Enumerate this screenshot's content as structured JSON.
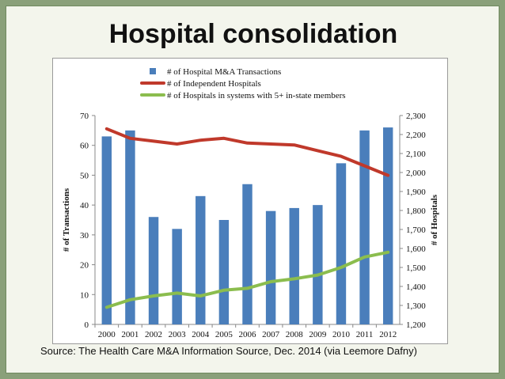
{
  "slide": {
    "title": "Hospital consolidation",
    "source": "Source: The Health Care M&A Information Source, Dec. 2014 (via Leemore Dafny)"
  },
  "chart_data": {
    "type": "bar",
    "categories": [
      "2000",
      "2001",
      "2002",
      "2003",
      "2004",
      "2005",
      "2006",
      "2007",
      "2008",
      "2009",
      "2010",
      "2011",
      "2012"
    ],
    "series": [
      {
        "name": "# of Hospital M&A Transactions",
        "kind": "bar",
        "axis": "left",
        "color": "#4a7ebb",
        "values": [
          63,
          65,
          36,
          32,
          43,
          35,
          47,
          38,
          39,
          40,
          54,
          65,
          66
        ]
      },
      {
        "name": "# of Independent Hospitals",
        "kind": "line",
        "axis": "right",
        "color": "#c0392b",
        "values": [
          2230,
          2180,
          2165,
          2150,
          2170,
          2180,
          2155,
          2150,
          2145,
          2115,
          2085,
          2035,
          1985
        ]
      },
      {
        "name": "# of Hospitals in systems with 5+ in-state members",
        "kind": "line",
        "axis": "right",
        "color": "#8bbd4e",
        "values": [
          1290,
          1330,
          1350,
          1365,
          1350,
          1380,
          1390,
          1425,
          1440,
          1460,
          1500,
          1555,
          1580
        ]
      }
    ],
    "ylabel": "# of Transactions",
    "ylabel_right": "# of Hospitals",
    "ylim": [
      0,
      70
    ],
    "ylim_right": [
      1200,
      2300
    ],
    "yticks": [
      "0",
      "10",
      "20",
      "30",
      "40",
      "50",
      "60",
      "70"
    ],
    "yticks_right": [
      "1,200",
      "1,300",
      "1,400",
      "1,500",
      "1,600",
      "1,700",
      "1,800",
      "1,900",
      "2,000",
      "2,100",
      "2,200",
      "2,300"
    ],
    "legend_position": "top",
    "grid": false
  }
}
